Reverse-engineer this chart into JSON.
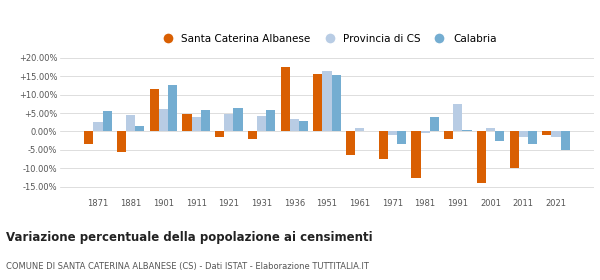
{
  "years": [
    1871,
    1881,
    1901,
    1911,
    1921,
    1931,
    1936,
    1951,
    1961,
    1971,
    1981,
    1991,
    2001,
    2011,
    2021
  ],
  "santa_caterina": [
    -3.5,
    -5.5,
    11.5,
    4.8,
    -1.5,
    -2.0,
    17.5,
    15.5,
    -6.5,
    -7.5,
    -12.5,
    -2.0,
    -14.0,
    -10.0,
    -1.0
  ],
  "provincia_cs": [
    2.5,
    4.5,
    6.0,
    3.8,
    4.8,
    4.2,
    3.5,
    16.5,
    1.0,
    -1.0,
    -0.5,
    7.5,
    1.0,
    -1.5,
    -1.5
  ],
  "calabria": [
    5.5,
    1.5,
    12.5,
    5.8,
    6.5,
    5.8,
    2.8,
    15.2,
    0.0,
    -3.5,
    3.8,
    0.5,
    -2.5,
    -3.5,
    -5.0
  ],
  "color_santa": "#d95f02",
  "color_provincia": "#b8cce4",
  "color_calabria": "#74add1",
  "title": "Variazione percentuale della popolazione ai censimenti",
  "subtitle": "COMUNE DI SANTA CATERINA ALBANESE (CS) - Dati ISTAT - Elaborazione TUTTITALIA.IT",
  "ylim": [
    -17.5,
    22.0
  ],
  "yticks": [
    -15.0,
    -10.0,
    -5.0,
    0.0,
    5.0,
    10.0,
    15.0,
    20.0
  ],
  "legend_labels": [
    "Santa Caterina Albanese",
    "Provincia di CS",
    "Calabria"
  ],
  "bar_width": 0.28
}
